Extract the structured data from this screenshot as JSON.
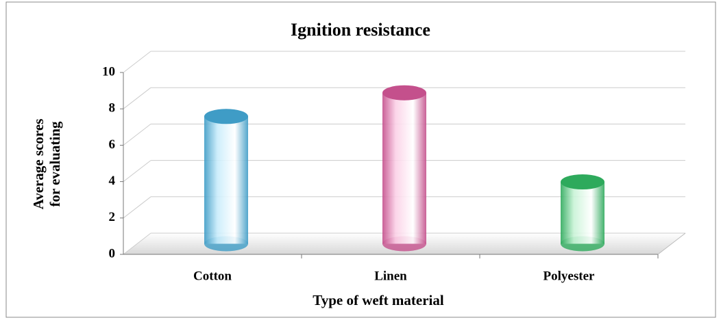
{
  "chart_data": {
    "type": "bar3d",
    "title": "Ignition resistance",
    "x_label": "Type of weft material",
    "y_label": [
      "Average scores",
      "for evaluating"
    ],
    "categories": [
      "Cotton",
      "Linen",
      "Polyester"
    ],
    "values": [
      7,
      8.3,
      3.4
    ],
    "colors": [
      "#3f9cc6",
      "#c4508c",
      "#2eaa5c"
    ],
    "body_colors": [
      "#c8ecfb",
      "#fbd0e6",
      "#c8f3d6"
    ],
    "ylim": [
      0,
      10
    ],
    "yticks": [
      0,
      2,
      4,
      6,
      8,
      10
    ],
    "grid": true
  }
}
